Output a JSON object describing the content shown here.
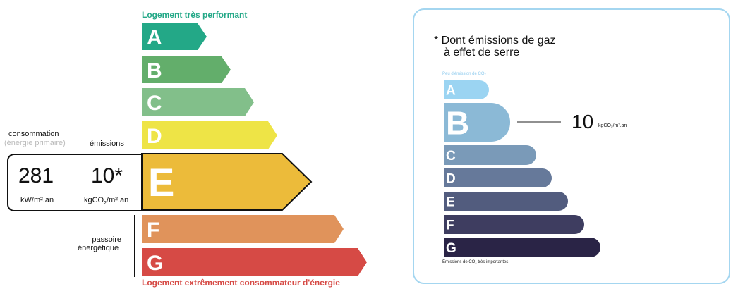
{
  "energy_label": {
    "top_caption": "Logement très performant",
    "bottom_caption": "Logement extrêmement consommateur d'énergie",
    "classes": [
      {
        "letter": "A",
        "color": "#23a887"
      },
      {
        "letter": "B",
        "color": "#63ae6b"
      },
      {
        "letter": "C",
        "color": "#82bf8a"
      },
      {
        "letter": "D",
        "color": "#eee446"
      },
      {
        "letter": "E",
        "color": "#ecbb3a"
      },
      {
        "letter": "F",
        "color": "#e0935b"
      },
      {
        "letter": "G",
        "color": "#d64a45"
      }
    ],
    "active_class": "E",
    "consumption_label": "consommation",
    "consumption_sublabel": "(énergie primaire)",
    "emissions_label": "émissions",
    "consumption_value": "281",
    "consumption_unit": "kW/m².an",
    "emissions_value": "10*",
    "emissions_unit_pre": "kgCO",
    "emissions_unit_sub": "2",
    "emissions_unit_post": "/m².an",
    "passoire_label_1": "passoire",
    "passoire_label_2": "énergétique"
  },
  "ges_label": {
    "title_1": "* Dont émissions de gaz",
    "title_2": "à effet de serre",
    "top_caption": "Peu d'émission de CO₂",
    "bottom_caption": "Émissions de CO₂ très importantes",
    "classes": [
      {
        "letter": "A",
        "color": "#9bd4f2"
      },
      {
        "letter": "B",
        "color": "#8bb9d6"
      },
      {
        "letter": "C",
        "color": "#7a9ab8"
      },
      {
        "letter": "D",
        "color": "#66799a"
      },
      {
        "letter": "E",
        "color": "#525c7e"
      },
      {
        "letter": "F",
        "color": "#3e3d60"
      },
      {
        "letter": "G",
        "color": "#2a2446"
      }
    ],
    "active_class": "B",
    "value": "10",
    "unit": "kgCO₂/m².an",
    "border_color": "#a4d6f0"
  }
}
